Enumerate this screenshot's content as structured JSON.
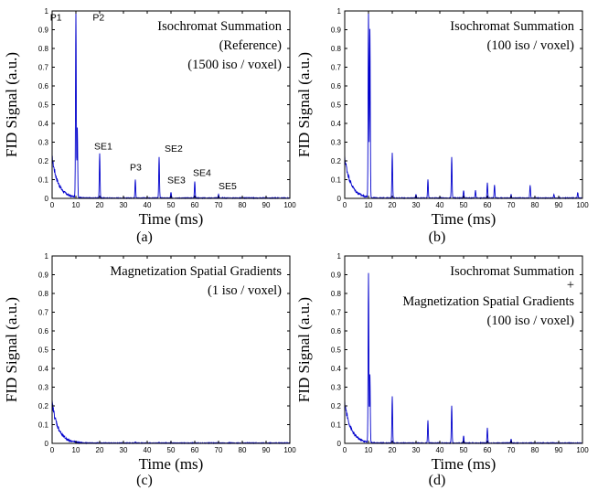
{
  "chart_data": [
    {
      "type": "line",
      "panel_label": "(a)",
      "xlabel": "Time (ms)",
      "ylabel": "FID Signal (a.u.)",
      "xlim": [
        0,
        100
      ],
      "ylim": [
        0,
        1
      ],
      "xticks": [
        "0",
        "10",
        "20",
        "30",
        "40",
        "50",
        "60",
        "70",
        "80",
        "90",
        "100"
      ],
      "yticks": [
        "0",
        "0.1",
        "0.2",
        "0.3",
        "0.4",
        "0.5",
        "0.6",
        "0.7",
        "0.8",
        "0.9",
        "1"
      ],
      "series_color": "#0000cc",
      "annotations": [
        "Isochromat Summation",
        "(Reference)",
        "(1500 iso / voxel)"
      ],
      "peak_labels": [
        {
          "text": "P1",
          "x": 3,
          "y": 0.95
        },
        {
          "text": "P2",
          "x": 14,
          "y": 0.95
        },
        {
          "text": "SE1",
          "x": 20,
          "y": 0.26
        },
        {
          "text": "P3",
          "x": 35,
          "y": 0.15
        },
        {
          "text": "SE2",
          "x": 45,
          "y": 0.25
        },
        {
          "text": "SE3",
          "x": 50,
          "y": 0.08
        },
        {
          "text": "SE4",
          "x": 60,
          "y": 0.12
        },
        {
          "text": "SE5",
          "x": 70,
          "y": 0.05
        }
      ],
      "baseline": {
        "amp": 0.2,
        "tau": 2.5
      },
      "peaks": [
        {
          "x": 10,
          "y": 1.0
        },
        {
          "x": 10.6,
          "y": 0.37
        },
        {
          "x": 20,
          "y": 0.24
        },
        {
          "x": 35,
          "y": 0.1
        },
        {
          "x": 45,
          "y": 0.22
        },
        {
          "x": 50,
          "y": 0.03
        },
        {
          "x": 60,
          "y": 0.09
        },
        {
          "x": 70,
          "y": 0.02
        }
      ]
    },
    {
      "type": "line",
      "panel_label": "(b)",
      "xlabel": "Time (ms)",
      "ylabel": "FID Signal (a.u.)",
      "xlim": [
        0,
        100
      ],
      "ylim": [
        0,
        1
      ],
      "xticks": [
        "0",
        "10",
        "20",
        "30",
        "40",
        "50",
        "60",
        "70",
        "80",
        "90",
        "100"
      ],
      "yticks": [
        "0",
        "0.1",
        "0.2",
        "0.3",
        "0.4",
        "0.5",
        "0.6",
        "0.7",
        "0.8",
        "0.9",
        "1"
      ],
      "series_color": "#0000cc",
      "annotations": [
        "Isochromat Summation",
        "(100 iso / voxel)"
      ],
      "peak_labels": [],
      "baseline": {
        "amp": 0.2,
        "tau": 2.5
      },
      "peaks": [
        {
          "x": 10,
          "y": 1.0
        },
        {
          "x": 10.6,
          "y": 0.9
        },
        {
          "x": 20,
          "y": 0.24
        },
        {
          "x": 30,
          "y": 0.02
        },
        {
          "x": 35,
          "y": 0.1
        },
        {
          "x": 45,
          "y": 0.22
        },
        {
          "x": 50,
          "y": 0.04
        },
        {
          "x": 55,
          "y": 0.04
        },
        {
          "x": 60,
          "y": 0.08
        },
        {
          "x": 63,
          "y": 0.07
        },
        {
          "x": 70,
          "y": 0.02
        },
        {
          "x": 78,
          "y": 0.07
        },
        {
          "x": 88,
          "y": 0.02
        },
        {
          "x": 98,
          "y": 0.03
        }
      ]
    },
    {
      "type": "line",
      "panel_label": "(c)",
      "xlabel": "Time (ms)",
      "ylabel": "FID Signal (a.u.)",
      "xlim": [
        0,
        100
      ],
      "ylim": [
        0,
        1
      ],
      "xticks": [
        "0",
        "10",
        "20",
        "30",
        "40",
        "50",
        "60",
        "70",
        "80",
        "90",
        "100"
      ],
      "yticks": [
        "0",
        "0.1",
        "0.2",
        "0.3",
        "0.4",
        "0.5",
        "0.6",
        "0.7",
        "0.8",
        "0.9",
        "1"
      ],
      "series_color": "#0000cc",
      "annotations": [
        "Magnetization Spatial Gradients",
        "(1 iso / voxel)"
      ],
      "peak_labels": [],
      "baseline": {
        "amp": 0.2,
        "tau": 2.5
      },
      "peaks": [
        {
          "x": 35,
          "y": 0.005
        },
        {
          "x": 45,
          "y": 0.005
        }
      ]
    },
    {
      "type": "line",
      "panel_label": "(d)",
      "xlabel": "Time (ms)",
      "ylabel": "FID Signal (a.u.)",
      "xlim": [
        0,
        100
      ],
      "ylim": [
        0,
        1
      ],
      "xticks": [
        "0",
        "10",
        "20",
        "30",
        "40",
        "50",
        "60",
        "70",
        "80",
        "90",
        "100"
      ],
      "yticks": [
        "0",
        "0.1",
        "0.2",
        "0.3",
        "0.4",
        "0.5",
        "0.6",
        "0.7",
        "0.8",
        "0.9",
        "1"
      ],
      "series_color": "#0000cc",
      "annotations": [
        "Isochromat Summation",
        "+",
        "Magnetization Spatial Gradients",
        "(100 iso / voxel)"
      ],
      "peak_labels": [],
      "baseline": {
        "amp": 0.2,
        "tau": 2.5
      },
      "peaks": [
        {
          "x": 10,
          "y": 0.9
        },
        {
          "x": 10.6,
          "y": 0.36
        },
        {
          "x": 20,
          "y": 0.25
        },
        {
          "x": 35,
          "y": 0.12
        },
        {
          "x": 45,
          "y": 0.2
        },
        {
          "x": 50,
          "y": 0.04
        },
        {
          "x": 60,
          "y": 0.08
        },
        {
          "x": 70,
          "y": 0.02
        }
      ]
    }
  ]
}
